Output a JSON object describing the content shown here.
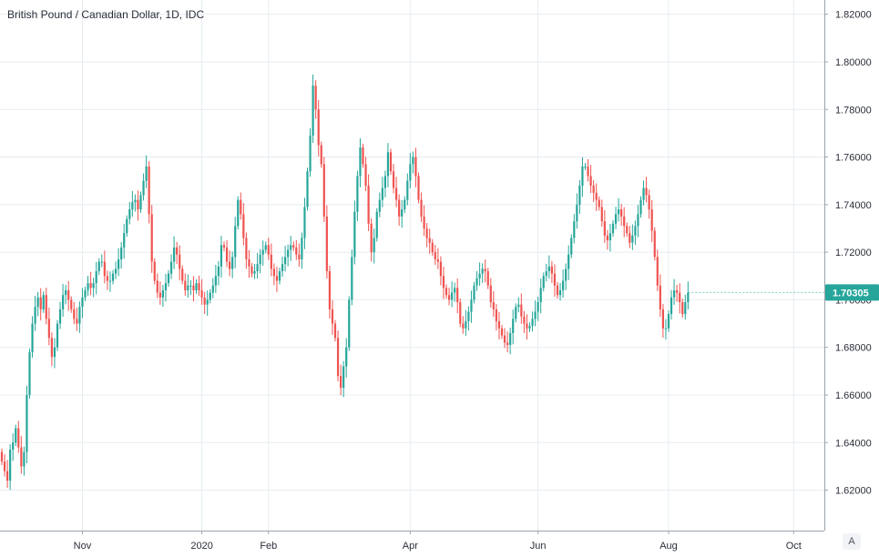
{
  "chart": {
    "title": "British Pound / Canadian Dollar, 1D, IDC",
    "current_price": "1.70305",
    "auto_scale_label": "A"
  },
  "colors": {
    "up": "#26a69a",
    "down": "#ef5350",
    "grid": "#e6ecf0",
    "price_tag": "#26a69a"
  },
  "chart_data": {
    "type": "candlestick",
    "title": "British Pound / Canadian Dollar, 1D, IDC",
    "xlabel": "",
    "ylabel": "",
    "ylim": [
      1.603,
      1.826
    ],
    "y_ticks": [
      "1.62000",
      "1.64000",
      "1.66000",
      "1.68000",
      "1.70000",
      "1.72000",
      "1.74000",
      "1.76000",
      "1.78000",
      "1.80000",
      "1.82000"
    ],
    "x_ticks": [
      "Nov",
      "2020",
      "Feb",
      "Apr",
      "Jun",
      "Aug",
      "Oct"
    ],
    "x_tick_day_index": [
      29,
      72,
      96,
      147,
      193,
      240,
      285
    ],
    "last_price": 1.70305,
    "closes": [
      1.632,
      1.628,
      1.624,
      1.637,
      1.64,
      1.646,
      1.638,
      1.63,
      1.636,
      1.66,
      1.678,
      1.69,
      1.697,
      1.701,
      1.696,
      1.702,
      1.692,
      1.684,
      1.676,
      1.68,
      1.69,
      1.696,
      1.702,
      1.704,
      1.7,
      1.696,
      1.692,
      1.69,
      1.697,
      1.701,
      1.704,
      1.707,
      1.705,
      1.707,
      1.712,
      1.716,
      1.716,
      1.71,
      1.708,
      1.708,
      1.711,
      1.713,
      1.717,
      1.722,
      1.728,
      1.734,
      1.738,
      1.741,
      1.742,
      1.738,
      1.744,
      1.75,
      1.756,
      1.736,
      1.716,
      1.708,
      1.703,
      1.701,
      1.704,
      1.707,
      1.711,
      1.716,
      1.722,
      1.719,
      1.713,
      1.708,
      1.704,
      1.706,
      1.706,
      1.704,
      1.707,
      1.704,
      1.701,
      1.698,
      1.7,
      1.703,
      1.706,
      1.71,
      1.714,
      1.723,
      1.722,
      1.716,
      1.713,
      1.718,
      1.731,
      1.742,
      1.736,
      1.726,
      1.717,
      1.714,
      1.711,
      1.712,
      1.715,
      1.719,
      1.721,
      1.723,
      1.719,
      1.713,
      1.71,
      1.708,
      1.712,
      1.715,
      1.718,
      1.721,
      1.723,
      1.722,
      1.719,
      1.717,
      1.726,
      1.739,
      1.754,
      1.769,
      1.79,
      1.78,
      1.765,
      1.757,
      1.735,
      1.712,
      1.696,
      1.69,
      1.684,
      1.668,
      1.663,
      1.672,
      1.68,
      1.7,
      1.718,
      1.737,
      1.752,
      1.764,
      1.757,
      1.748,
      1.732,
      1.72,
      1.726,
      1.737,
      1.742,
      1.747,
      1.752,
      1.762,
      1.754,
      1.747,
      1.742,
      1.735,
      1.738,
      1.742,
      1.75,
      1.757,
      1.76,
      1.752,
      1.742,
      1.735,
      1.73,
      1.726,
      1.724,
      1.72,
      1.717,
      1.716,
      1.71,
      1.705,
      1.702,
      1.7,
      1.703,
      1.705,
      1.699,
      1.69,
      1.688,
      1.691,
      1.695,
      1.7,
      1.706,
      1.709,
      1.711,
      1.713,
      1.712,
      1.706,
      1.699,
      1.696,
      1.691,
      1.688,
      1.685,
      1.682,
      1.681,
      1.686,
      1.692,
      1.697,
      1.698,
      1.693,
      1.69,
      1.688,
      1.689,
      1.692,
      1.695,
      1.699,
      1.705,
      1.71,
      1.712,
      1.714,
      1.711,
      1.706,
      1.702,
      1.704,
      1.708,
      1.713,
      1.719,
      1.726,
      1.733,
      1.74,
      1.748,
      1.756,
      1.756,
      1.752,
      1.748,
      1.745,
      1.742,
      1.739,
      1.733,
      1.727,
      1.725,
      1.728,
      1.732,
      1.736,
      1.738,
      1.735,
      1.731,
      1.728,
      1.724,
      1.727,
      1.731,
      1.736,
      1.742,
      1.747,
      1.744,
      1.738,
      1.729,
      1.718,
      1.706,
      1.696,
      1.688,
      1.688,
      1.694,
      1.701,
      1.704,
      1.703,
      1.699,
      1.694,
      1.699,
      1.703
    ]
  }
}
